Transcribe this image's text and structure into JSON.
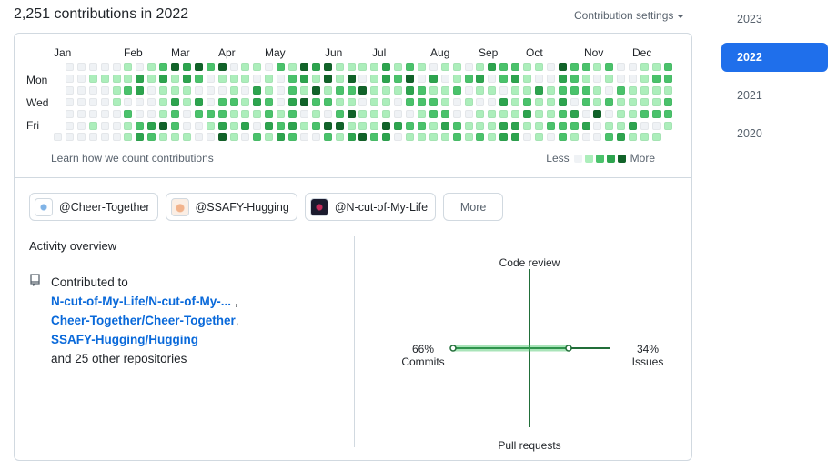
{
  "header": {
    "title": "2,251 contributions in 2022",
    "settings_label": "Contribution settings"
  },
  "years": [
    "2023",
    "2022",
    "2021",
    "2020"
  ],
  "selected_year": "2022",
  "calendar": {
    "months": [
      "Jan",
      "Feb",
      "Mar",
      "Apr",
      "May",
      "Jun",
      "Jul",
      "Aug",
      "Sep",
      "Oct",
      "Nov",
      "Dec"
    ],
    "days": [
      "Mon",
      "Wed",
      "Fri"
    ],
    "learn_link": "Learn how we count contributions",
    "legend_less": "Less",
    "legend_more": "More",
    "level_colors": [
      "#eff2f5",
      "#aceebb",
      "#4ac26b",
      "#2da44e",
      "#116329"
    ]
  },
  "organizations": [
    {
      "name": "@Cheer-Together"
    },
    {
      "name": "@SSAFY-Hugging"
    },
    {
      "name": "@N-cut-of-My-Life"
    }
  ],
  "more_label": "More",
  "activity": {
    "title": "Activity overview",
    "contributed_to": "Contributed to",
    "repos": [
      "N-cut-of-My-Life/N-cut-of-My-...",
      "Cheer-Together/Cheer-Together",
      "SSAFY-Hugging/Hugging"
    ],
    "others": "and 25 other repositories"
  },
  "chart_data": {
    "type": "axis-cross",
    "axes": {
      "top": {
        "label": "Code review",
        "percent": null
      },
      "left": {
        "label": "Commits",
        "percent": "66%"
      },
      "right": {
        "label": "Issues",
        "percent": "34%"
      },
      "bottom": {
        "label": "Pull requests",
        "percent": null
      }
    },
    "values": {
      "commits": 66,
      "issues": 34,
      "code_review": 0,
      "pull_requests": 0
    },
    "line_color": "#216e39",
    "fill_color": "#40c463"
  }
}
